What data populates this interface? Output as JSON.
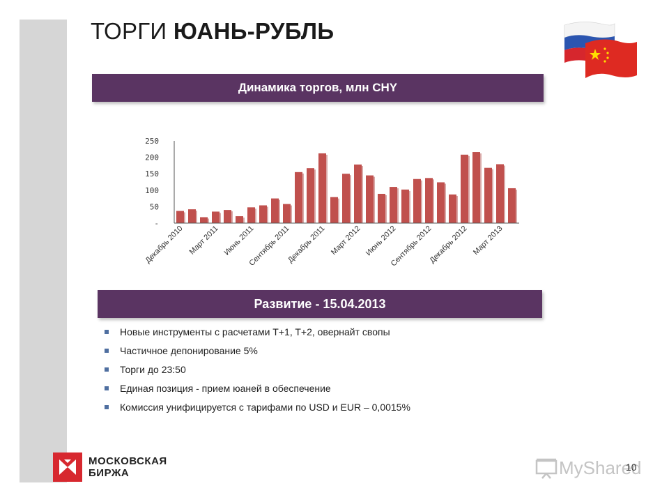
{
  "slide": {
    "title_light": "ТОРГИ ",
    "title_bold": "ЮАНЬ-РУБЛЬ",
    "chart_banner": "Динамика торгов, млн CHY",
    "dev_banner": "Развитие - 15.04.2013",
    "bullets": [
      "Новые инструменты с расчетами T+1, T+2, овернайт свопы",
      "Частичное депонирование 5%",
      "Торги до 23:50",
      "Единая позиция - прием юаней в обеспечение",
      "Комиссия унифицируется с тарифами по USD и EUR – 0,0015%"
    ],
    "logo_line1": "МОСКОВСКАЯ",
    "logo_line2": "БИРЖА",
    "page_number": "10",
    "watermark": "MyShared"
  },
  "colors": {
    "banner": "#5a3462",
    "bar": "#c0504d",
    "logo_red": "#d7282f"
  },
  "chart_data": {
    "type": "bar",
    "title": "",
    "xlabel": "",
    "ylabel": "",
    "ylim": [
      0,
      250
    ],
    "yticks": [
      0,
      50,
      100,
      150,
      200,
      250
    ],
    "ytick_labels": [
      "-",
      "50",
      "100",
      "150",
      "200",
      "250"
    ],
    "categories": [
      "Декабрь 2010",
      "Январь 2011",
      "Февраль 2011",
      "Март 2011",
      "Апрель 2011",
      "Май 2011",
      "Июнь 2011",
      "Июль 2011",
      "Август 2011",
      "Сентябрь 2011",
      "Октябрь 2011",
      "Ноябрь 2011",
      "Декабрь 2011",
      "Январь 2012",
      "Февраль 2012",
      "Март 2012",
      "Апрель 2012",
      "Май 2012",
      "Июнь 2012",
      "Июль 2012",
      "Август 2012",
      "Сентябрь 2012",
      "Октябрь 2012",
      "Ноябрь 2012",
      "Декабрь 2012",
      "Январь 2013",
      "Февраль 2013",
      "Март 2013",
      "Апрель 2013"
    ],
    "values": [
      37,
      42,
      18,
      35,
      40,
      21,
      48,
      54,
      75,
      58,
      155,
      167,
      212,
      79,
      150,
      178,
      145,
      89,
      110,
      102,
      134,
      137,
      124,
      87,
      208,
      216,
      168,
      179,
      106
    ],
    "tick_labels": [
      {
        "index": 0,
        "label": "Декабрь 2010"
      },
      {
        "index": 3,
        "label": "Март 2011"
      },
      {
        "index": 6,
        "label": "Июнь 2011"
      },
      {
        "index": 9,
        "label": "Сентябрь 2011"
      },
      {
        "index": 12,
        "label": "Декабрь 2011"
      },
      {
        "index": 15,
        "label": "Март 2012"
      },
      {
        "index": 18,
        "label": "Июнь 2012"
      },
      {
        "index": 21,
        "label": "Сентябрь 2012"
      },
      {
        "index": 24,
        "label": "Декабрь 2012"
      },
      {
        "index": 27,
        "label": "Март 2013"
      }
    ],
    "grid": false,
    "legend": "none"
  }
}
